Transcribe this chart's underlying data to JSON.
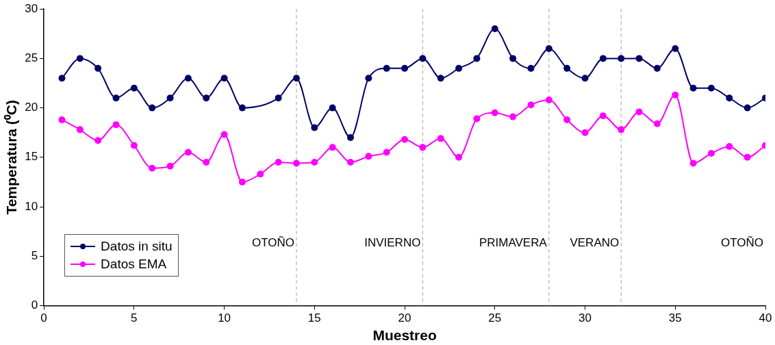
{
  "chart_data": {
    "type": "line",
    "xlabel": "Muestreo",
    "ylabel": "Temperatura (⁰C)",
    "x": [
      1,
      2,
      3,
      4,
      5,
      6,
      7,
      8,
      9,
      10,
      11,
      12,
      13,
      14,
      15,
      16,
      17,
      18,
      19,
      20,
      21,
      22,
      23,
      24,
      25,
      26,
      27,
      28,
      29,
      30,
      31,
      32,
      33,
      34,
      35,
      36,
      37,
      38,
      39,
      40
    ],
    "series": [
      {
        "name": "Datos in situ",
        "color": "#000066",
        "values": [
          23,
          25,
          24,
          21,
          22,
          20,
          21,
          23,
          21,
          23,
          20,
          null,
          21,
          23,
          18,
          20,
          17,
          23,
          24,
          24,
          25,
          23,
          24,
          25,
          28,
          25,
          24,
          26,
          24,
          23,
          25,
          25,
          25,
          24,
          26,
          22,
          22,
          21,
          20,
          21
        ]
      },
      {
        "name": "Datos EMA",
        "color": "#ff00ff",
        "values": [
          18.8,
          17.8,
          16.7,
          18.3,
          16.2,
          13.9,
          14.1,
          15.5,
          14.5,
          17.3,
          12.5,
          13.3,
          14.5,
          14.4,
          14.5,
          16.0,
          14.5,
          15.1,
          15.5,
          16.8,
          16.0,
          16.9,
          15.0,
          18.9,
          19.5,
          19.1,
          20.3,
          20.8,
          18.8,
          17.5,
          19.2,
          17.8,
          19.6,
          18.4,
          21.3,
          14.4,
          15.4,
          16.1,
          15.0,
          16.2
        ]
      }
    ],
    "xlim": [
      0,
      40
    ],
    "xticks": [
      0,
      5,
      10,
      15,
      20,
      25,
      30,
      35,
      40
    ],
    "ylim": [
      0,
      30
    ],
    "yticks": [
      0,
      5,
      10,
      15,
      20,
      25,
      30
    ],
    "ref_lines": [
      {
        "axis": "x",
        "value": 14,
        "color": "#a0a0a0",
        "line_style": "dashed"
      },
      {
        "axis": "x",
        "value": 21,
        "color": "#a0a0a0",
        "line_style": "dashed"
      },
      {
        "axis": "x",
        "value": 28,
        "color": "#a0a0a0",
        "line_style": "dashed"
      },
      {
        "axis": "x",
        "value": 32,
        "color": "#a0a0a0",
        "line_style": "dashed"
      }
    ],
    "annotations": [
      "OTOÑO",
      "INVIERNO",
      "PRIMAVERA",
      "VERANO",
      "OTOÑO"
    ],
    "grid": false,
    "legend": "bottom left",
    "marker": "circle",
    "line_style": "solid"
  }
}
